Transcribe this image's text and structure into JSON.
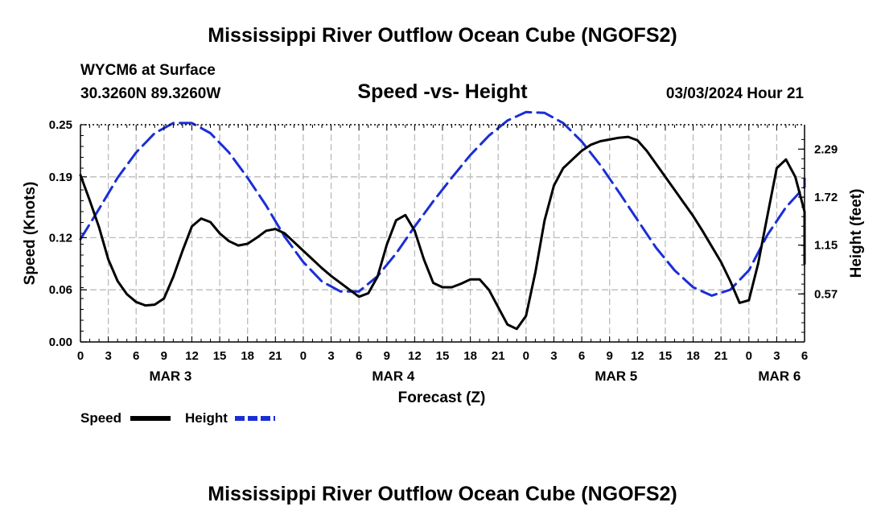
{
  "title": "Mississippi River Outflow Ocean Cube (NGOFS2)",
  "bottom_title": "Mississippi River Outflow Ocean Cube (NGOFS2)",
  "station": {
    "name": "WYCM6 at Surface",
    "coords": "30.3260N  89.3260W"
  },
  "subtitle": "Speed -vs- Height",
  "date": "03/03/2024 Hour 21",
  "chart_data": {
    "type": "line",
    "title": "Speed -vs- Height",
    "xlabel": "Forecast (Z)",
    "ylabel": "Speed (Knots)",
    "y2label": "Height (feet)",
    "x_range": [
      0,
      78
    ],
    "ylim": [
      0,
      0.25
    ],
    "y2lim": [
      0,
      2.58
    ],
    "grid": true,
    "x_ticks": [
      {
        "x": 0,
        "label": "0"
      },
      {
        "x": 3,
        "label": "3"
      },
      {
        "x": 6,
        "label": "6"
      },
      {
        "x": 9,
        "label": "9"
      },
      {
        "x": 12,
        "label": "12"
      },
      {
        "x": 15,
        "label": "15"
      },
      {
        "x": 18,
        "label": "18"
      },
      {
        "x": 21,
        "label": "21"
      },
      {
        "x": 24,
        "label": "0"
      },
      {
        "x": 27,
        "label": "3"
      },
      {
        "x": 30,
        "label": "6"
      },
      {
        "x": 33,
        "label": "9"
      },
      {
        "x": 36,
        "label": "12"
      },
      {
        "x": 39,
        "label": "15"
      },
      {
        "x": 42,
        "label": "18"
      },
      {
        "x": 45,
        "label": "21"
      },
      {
        "x": 48,
        "label": "0"
      },
      {
        "x": 51,
        "label": "3"
      },
      {
        "x": 54,
        "label": "6"
      },
      {
        "x": 57,
        "label": "9"
      },
      {
        "x": 60,
        "label": "12"
      },
      {
        "x": 63,
        "label": "15"
      },
      {
        "x": 66,
        "label": "18"
      },
      {
        "x": 69,
        "label": "21"
      },
      {
        "x": 72,
        "label": "0"
      },
      {
        "x": 75,
        "label": "3"
      },
      {
        "x": 78,
        "label": "6"
      }
    ],
    "date_labels": [
      {
        "x": 9.7,
        "label": "MAR 3"
      },
      {
        "x": 33.7,
        "label": "MAR 4"
      },
      {
        "x": 57.7,
        "label": "MAR 5"
      },
      {
        "x": 75.3,
        "label": "MAR 6"
      }
    ],
    "y_ticks": [
      "0.00",
      "0.06",
      "0.12",
      "0.19",
      "0.25"
    ],
    "y2_ticks": [
      "0.57",
      "1.15",
      "1.72",
      "2.29"
    ],
    "series": [
      {
        "name": "Speed",
        "axis": "left",
        "color": "#000000",
        "style": "solid",
        "points": [
          [
            0,
            0.192
          ],
          [
            1,
            0.163
          ],
          [
            2,
            0.132
          ],
          [
            3,
            0.095
          ],
          [
            4,
            0.07
          ],
          [
            5,
            0.055
          ],
          [
            6,
            0.046
          ],
          [
            7,
            0.042
          ],
          [
            8,
            0.043
          ],
          [
            9,
            0.05
          ],
          [
            10,
            0.075
          ],
          [
            11,
            0.105
          ],
          [
            12,
            0.133
          ],
          [
            13,
            0.142
          ],
          [
            14,
            0.138
          ],
          [
            15,
            0.125
          ],
          [
            16,
            0.116
          ],
          [
            17,
            0.111
          ],
          [
            18,
            0.113
          ],
          [
            19,
            0.12
          ],
          [
            20,
            0.128
          ],
          [
            21,
            0.13
          ],
          [
            22,
            0.125
          ],
          [
            23,
            0.115
          ],
          [
            24,
            0.105
          ],
          [
            25,
            0.095
          ],
          [
            26,
            0.085
          ],
          [
            27,
            0.076
          ],
          [
            28,
            0.068
          ],
          [
            29,
            0.06
          ],
          [
            30,
            0.052
          ],
          [
            31,
            0.056
          ],
          [
            32,
            0.075
          ],
          [
            33,
            0.112
          ],
          [
            34,
            0.14
          ],
          [
            35,
            0.146
          ],
          [
            36,
            0.128
          ],
          [
            37,
            0.095
          ],
          [
            38,
            0.068
          ],
          [
            39,
            0.063
          ],
          [
            40,
            0.063
          ],
          [
            41,
            0.067
          ],
          [
            42,
            0.072
          ],
          [
            43,
            0.072
          ],
          [
            44,
            0.06
          ],
          [
            45,
            0.04
          ],
          [
            46,
            0.02
          ],
          [
            47,
            0.015
          ],
          [
            48,
            0.03
          ],
          [
            49,
            0.08
          ],
          [
            50,
            0.14
          ],
          [
            51,
            0.18
          ],
          [
            52,
            0.2
          ],
          [
            53,
            0.21
          ],
          [
            54,
            0.22
          ],
          [
            55,
            0.227
          ],
          [
            56,
            0.231
          ],
          [
            57,
            0.233
          ],
          [
            58,
            0.235
          ],
          [
            59,
            0.236
          ],
          [
            60,
            0.232
          ],
          [
            61,
            0.22
          ],
          [
            62,
            0.205
          ],
          [
            63,
            0.19
          ],
          [
            64,
            0.175
          ],
          [
            65,
            0.16
          ],
          [
            66,
            0.145
          ],
          [
            67,
            0.128
          ],
          [
            68,
            0.11
          ],
          [
            69,
            0.092
          ],
          [
            70,
            0.07
          ],
          [
            71,
            0.045
          ],
          [
            72,
            0.048
          ],
          [
            73,
            0.09
          ],
          [
            74,
            0.145
          ],
          [
            75,
            0.2
          ],
          [
            76,
            0.21
          ],
          [
            77,
            0.19
          ],
          [
            78,
            0.15
          ],
          [
            79,
            0.09
          ]
        ]
      },
      {
        "name": "Height",
        "axis": "right",
        "color": "#1a2ed6",
        "style": "dashed",
        "points": [
          [
            0,
            1.22
          ],
          [
            2,
            1.58
          ],
          [
            4,
            1.95
          ],
          [
            6,
            2.25
          ],
          [
            8,
            2.48
          ],
          [
            10,
            2.6
          ],
          [
            12,
            2.6
          ],
          [
            14,
            2.48
          ],
          [
            16,
            2.25
          ],
          [
            18,
            1.95
          ],
          [
            20,
            1.62
          ],
          [
            22,
            1.25
          ],
          [
            24,
            0.95
          ],
          [
            26,
            0.72
          ],
          [
            28,
            0.6
          ],
          [
            30,
            0.6
          ],
          [
            32,
            0.78
          ],
          [
            34,
            1.05
          ],
          [
            36,
            1.37
          ],
          [
            38,
            1.67
          ],
          [
            40,
            1.95
          ],
          [
            42,
            2.22
          ],
          [
            44,
            2.45
          ],
          [
            46,
            2.63
          ],
          [
            48,
            2.73
          ],
          [
            50,
            2.72
          ],
          [
            52,
            2.6
          ],
          [
            54,
            2.38
          ],
          [
            56,
            2.1
          ],
          [
            58,
            1.78
          ],
          [
            60,
            1.45
          ],
          [
            62,
            1.12
          ],
          [
            64,
            0.85
          ],
          [
            66,
            0.65
          ],
          [
            68,
            0.55
          ],
          [
            70,
            0.62
          ],
          [
            72,
            0.85
          ],
          [
            74,
            1.27
          ],
          [
            76,
            1.6
          ],
          [
            78,
            1.84
          ],
          [
            79,
            1.94
          ]
        ]
      }
    ]
  },
  "legend": {
    "speed_label": "Speed",
    "height_label": "Height"
  }
}
